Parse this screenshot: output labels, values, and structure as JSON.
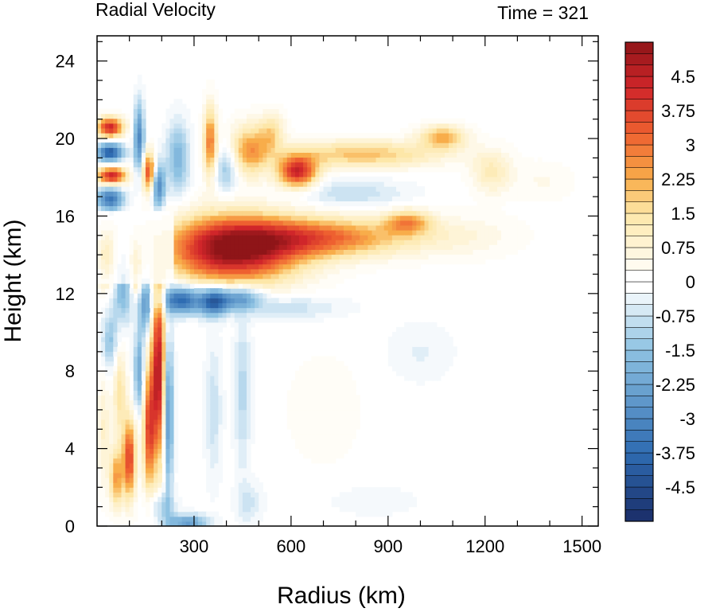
{
  "chart_data": {
    "type": "heatmap",
    "title_left": "Radial Velocity",
    "title_right": "Time = 321",
    "xlabel": "Radius (km)",
    "ylabel": "Height (km)",
    "xlim": [
      0,
      1550
    ],
    "ylim": [
      0,
      25.3
    ],
    "xticks": [
      300,
      600,
      900,
      1200,
      1500
    ],
    "yticks": [
      0,
      4,
      8,
      12,
      16,
      20,
      24
    ],
    "x_minor_step": 100,
    "y_minor_step": 1,
    "colorbar": {
      "min": -5.25,
      "max": 5.25,
      "step": 0.25,
      "labels": [
        "4.5",
        "3.75",
        "3",
        "2.25",
        "1.5",
        "0.75",
        "0",
        "-0.75",
        "-1.5",
        "-2.25",
        "-3",
        "-3.75",
        "-4.5"
      ],
      "label_values": [
        4.5,
        3.75,
        3,
        2.25,
        1.5,
        0.75,
        0,
        -0.75,
        -1.5,
        -2.25,
        -3,
        -3.75,
        -4.5
      ],
      "colors": {
        "min": "#1a2d68",
        "neg_mid": "#2f6cb2",
        "neg_light": "#8ec2e2",
        "zero": "#ffffff",
        "pos_light": "#fde7a8",
        "pos_mid1": "#f8ad4a",
        "pos_mid2": "#ee6030",
        "pos_strong": "#d0262a",
        "max": "#8f1518"
      }
    },
    "features": [
      {
        "x": 420,
        "y": 14.3,
        "rx": 200,
        "ry": 1.7,
        "v": 5.3
      },
      {
        "x": 700,
        "y": 14.9,
        "rx": 250,
        "ry": 1.0,
        "v": 3.0
      },
      {
        "x": 960,
        "y": 15.7,
        "rx": 70,
        "ry": 0.6,
        "v": 2.3
      },
      {
        "x": 1120,
        "y": 15.0,
        "rx": 180,
        "ry": 1.1,
        "v": 0.6
      },
      {
        "x": 260,
        "y": 11.7,
        "rx": 60,
        "ry": 0.7,
        "v": -4.0
      },
      {
        "x": 360,
        "y": 11.6,
        "rx": 45,
        "ry": 0.7,
        "v": -3.8
      },
      {
        "x": 440,
        "y": 11.8,
        "rx": 70,
        "ry": 0.6,
        "v": -2.6
      },
      {
        "x": 600,
        "y": 11.3,
        "rx": 160,
        "ry": 0.6,
        "v": -0.8
      },
      {
        "x": 450,
        "y": 7.0,
        "rx": 25,
        "ry": 4.0,
        "v": -1.0
      },
      {
        "x": 360,
        "y": 6.0,
        "rx": 25,
        "ry": 3.5,
        "v": -0.8
      },
      {
        "x": 1000,
        "y": 9.0,
        "rx": 100,
        "ry": 1.5,
        "v": -0.4
      },
      {
        "x": 700,
        "y": 6.0,
        "rx": 120,
        "ry": 3.0,
        "v": 0.3
      },
      {
        "x": 620,
        "y": 18.3,
        "rx": 60,
        "ry": 0.8,
        "v": 4.2
      },
      {
        "x": 820,
        "y": 19.2,
        "rx": 240,
        "ry": 0.7,
        "v": 2.0
      },
      {
        "x": 1070,
        "y": 20.1,
        "rx": 70,
        "ry": 0.6,
        "v": 2.3
      },
      {
        "x": 1220,
        "y": 18.3,
        "rx": 60,
        "ry": 1.1,
        "v": 1.2
      },
      {
        "x": 1380,
        "y": 17.8,
        "rx": 90,
        "ry": 1.0,
        "v": 0.4
      },
      {
        "x": 780,
        "y": 17.2,
        "rx": 170,
        "ry": 0.7,
        "v": -0.9
      },
      {
        "x": 470,
        "y": 19.4,
        "rx": 60,
        "ry": 1.3,
        "v": 2.4
      },
      {
        "x": 540,
        "y": 20.3,
        "rx": 40,
        "ry": 1.0,
        "v": 1.5
      },
      {
        "x": 400,
        "y": 18.5,
        "rx": 40,
        "ry": 1.2,
        "v": -1.5
      },
      {
        "x": 350,
        "y": 19.8,
        "rx": 20,
        "ry": 1.8,
        "v": 3.0
      },
      {
        "x": 250,
        "y": 19.0,
        "rx": 35,
        "ry": 1.8,
        "v": -1.8
      },
      {
        "x": 40,
        "y": 20.6,
        "rx": 40,
        "ry": 0.5,
        "v": 4.3
      },
      {
        "x": 40,
        "y": 19.3,
        "rx": 40,
        "ry": 0.45,
        "v": -4.2
      },
      {
        "x": 45,
        "y": 18.1,
        "rx": 45,
        "ry": 0.45,
        "v": 4.3
      },
      {
        "x": 40,
        "y": 16.9,
        "rx": 40,
        "ry": 0.6,
        "v": -3.5
      },
      {
        "x": 130,
        "y": 20.0,
        "rx": 15,
        "ry": 1.8,
        "v": -3.0
      },
      {
        "x": 160,
        "y": 18.3,
        "rx": 20,
        "ry": 1.0,
        "v": 3.5
      },
      {
        "x": 190,
        "y": 17.5,
        "rx": 20,
        "ry": 1.2,
        "v": -3.0
      },
      {
        "x": 30,
        "y": 14.0,
        "rx": 30,
        "ry": 1.3,
        "v": 4.0
      },
      {
        "x": 80,
        "y": 12.5,
        "rx": 30,
        "ry": 2.0,
        "v": -2.0
      },
      {
        "x": 120,
        "y": 13.5,
        "rx": 20,
        "ry": 1.2,
        "v": 3.0
      },
      {
        "x": 190,
        "y": 8.0,
        "rx": 22,
        "ry": 4.5,
        "v": 4.8
      },
      {
        "x": 150,
        "y": 11.5,
        "rx": 20,
        "ry": 1.5,
        "v": -2.5
      },
      {
        "x": 160,
        "y": 5.0,
        "rx": 18,
        "ry": 3.0,
        "v": 3.5
      },
      {
        "x": 100,
        "y": 3.5,
        "rx": 20,
        "ry": 2.0,
        "v": 3.8
      },
      {
        "x": 60,
        "y": 2.5,
        "rx": 20,
        "ry": 1.5,
        "v": 2.5
      },
      {
        "x": 220,
        "y": 6.0,
        "rx": 15,
        "ry": 4.0,
        "v": -3.0
      },
      {
        "x": 130,
        "y": 8.0,
        "rx": 15,
        "ry": 2.0,
        "v": -2.2
      },
      {
        "x": 70,
        "y": 7.0,
        "rx": 20,
        "ry": 2.5,
        "v": 1.5
      },
      {
        "x": 40,
        "y": 9.5,
        "rx": 25,
        "ry": 1.5,
        "v": -1.5
      },
      {
        "x": 20,
        "y": 5.0,
        "rx": 20,
        "ry": 3.0,
        "v": 0.9
      },
      {
        "x": 200,
        "y": 1.0,
        "rx": 40,
        "ry": 0.8,
        "v": -1.2
      },
      {
        "x": 280,
        "y": 0.2,
        "rx": 60,
        "ry": 0.4,
        "v": -2.5
      },
      {
        "x": 470,
        "y": 1.2,
        "rx": 40,
        "ry": 1.0,
        "v": -0.7
      },
      {
        "x": 850,
        "y": 1.3,
        "rx": 150,
        "ry": 0.8,
        "v": -0.3
      }
    ]
  }
}
